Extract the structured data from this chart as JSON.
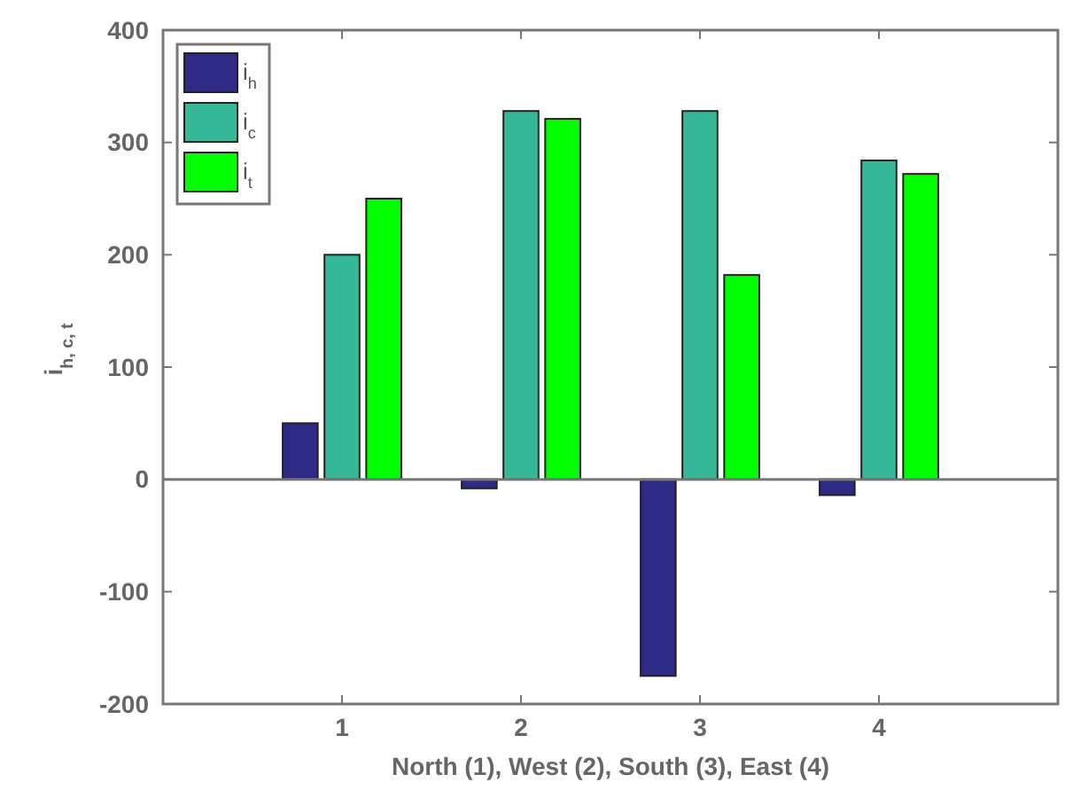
{
  "chart_data": {
    "type": "bar",
    "x": [
      1,
      2,
      3,
      4
    ],
    "xlim": [
      0,
      5
    ],
    "xticks": [
      1,
      2,
      3,
      4
    ],
    "ylim": [
      -200,
      400
    ],
    "yticks": [
      -200,
      -100,
      0,
      100,
      200,
      300,
      400
    ],
    "xlabel": "North (1), West (2), South (3), East (4)",
    "ylabel": "i$_{h, c, t}$",
    "legend": "top left",
    "ref_lines": [
      {
        "axis": "y",
        "value": 0,
        "color": "#777777"
      }
    ],
    "series": [
      {
        "name": "i$_{h}$",
        "color": "#2e2a85",
        "values": [
          50,
          -8,
          -175,
          -14
        ]
      },
      {
        "name": "i$_{c}$",
        "color": "#35b898",
        "values": [
          200,
          328,
          328,
          284
        ]
      },
      {
        "name": "i$_{t}$",
        "color": "#00ff00",
        "values": [
          250,
          321,
          182,
          272
        ]
      }
    ]
  }
}
